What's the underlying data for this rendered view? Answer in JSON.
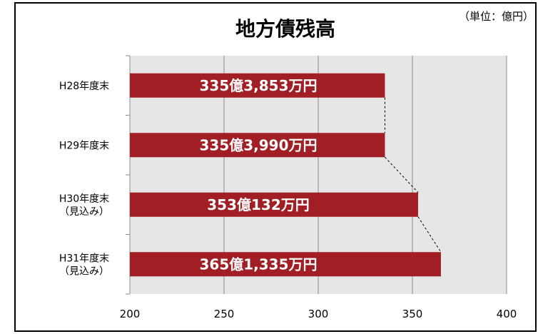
{
  "chart_data": {
    "type": "bar",
    "orientation": "horizontal",
    "title": "地方債残高",
    "unit_note": "（単位：億円）",
    "categories": [
      [
        "H28年度末"
      ],
      [
        "H29年度末"
      ],
      [
        "H30年度末",
        "（見込み）"
      ],
      [
        "H31年度末",
        "（見込み）"
      ]
    ],
    "values": [
      335.3853,
      335.399,
      353.0132,
      365.1335
    ],
    "data_labels": [
      "335億3,853万円",
      "335億3,990万円",
      "353億132万円",
      "365億1,335万円"
    ],
    "xlim": [
      200,
      400
    ],
    "xticks": [
      "200",
      "250",
      "300",
      "350",
      "400"
    ],
    "grid": true,
    "series_lines": "dashed connectors between bar ends",
    "colors": {
      "bar": "#a01e24",
      "plot_bg": "#e6e6e6",
      "border": "#000000",
      "grid": "#8c8c8c"
    }
  }
}
